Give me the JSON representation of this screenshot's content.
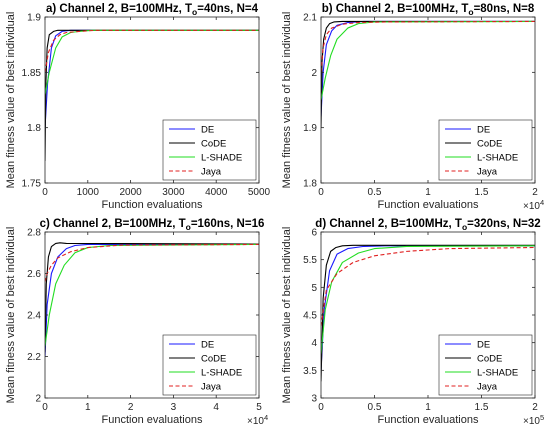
{
  "ylabel": "Mean fitness value of best individual",
  "legend_labels": [
    "DE",
    "CoDE",
    "L-SHADE",
    "Jaya"
  ],
  "colors": {
    "DE": "#1a1aff",
    "CoDE": "#000000",
    "L-SHADE": "#22dd22",
    "Jaya": "#e02020"
  },
  "chart_data": [
    {
      "type": "line",
      "title": {
        "prefix": "a) Channel 2, B=100MHz, T",
        "sub": "o",
        "suffix": "=40ns, N=4"
      },
      "xlabel": "Function evaluations",
      "xlim": [
        0,
        5000
      ],
      "ylim": [
        1.75,
        1.9
      ],
      "xticks": [
        0,
        1000,
        2000,
        3000,
        4000,
        5000
      ],
      "xtick_labels": [
        "0",
        "1000",
        "2000",
        "3000",
        "4000",
        "5000"
      ],
      "yticks": [
        1.75,
        1.8,
        1.85,
        1.9
      ],
      "ytick_labels": [
        "1.75",
        "1.8",
        "1.85",
        "1.9"
      ],
      "x_multiplier": "",
      "series": [
        {
          "name": "DE",
          "x": [
            0,
            60,
            150,
            250,
            400,
            600,
            900,
            5000
          ],
          "y": [
            1.8,
            1.84,
            1.872,
            1.883,
            1.887,
            1.888,
            1.888,
            1.888
          ]
        },
        {
          "name": "CoDE",
          "x": [
            0,
            20,
            50,
            100,
            200,
            300,
            500,
            5000
          ],
          "y": [
            1.77,
            1.84,
            1.872,
            1.884,
            1.887,
            1.888,
            1.888,
            1.888
          ]
        },
        {
          "name": "L-SHADE",
          "x": [
            0,
            100,
            250,
            400,
            600,
            800,
            1100,
            5000
          ],
          "y": [
            1.83,
            1.85,
            1.872,
            1.882,
            1.886,
            1.887,
            1.888,
            1.888
          ]
        },
        {
          "name": "Jaya",
          "x": [
            0,
            80,
            200,
            350,
            500,
            800,
            1200,
            5000
          ],
          "y": [
            1.85,
            1.868,
            1.879,
            1.884,
            1.886,
            1.887,
            1.888,
            1.888
          ]
        }
      ]
    },
    {
      "type": "line",
      "title": {
        "prefix": "b) Channel 2, B=100MHz, T",
        "sub": "o",
        "suffix": "=80ns, N=8"
      },
      "xlabel": "Function evaluations",
      "xlim": [
        0,
        20000
      ],
      "ylim": [
        1.8,
        2.1
      ],
      "xticks": [
        0,
        5000,
        10000,
        15000,
        20000
      ],
      "xtick_labels": [
        "0",
        "0.5",
        "1",
        "1.5",
        "2"
      ],
      "yticks": [
        1.8,
        1.9,
        2.0,
        2.1
      ],
      "ytick_labels": [
        "1.8",
        "1.9",
        "2",
        "2.1"
      ],
      "x_multiplier": "×10^4",
      "series": [
        {
          "name": "DE",
          "x": [
            0,
            200,
            500,
            1000,
            1500,
            2500,
            4000,
            20000
          ],
          "y": [
            1.92,
            2.0,
            2.05,
            2.075,
            2.085,
            2.09,
            2.092,
            2.092
          ]
        },
        {
          "name": "CoDE",
          "x": [
            0,
            100,
            250,
            500,
            800,
            1200,
            2000,
            20000
          ],
          "y": [
            1.9,
            2.02,
            2.06,
            2.08,
            2.088,
            2.091,
            2.092,
            2.092
          ]
        },
        {
          "name": "L-SHADE",
          "x": [
            0,
            400,
            900,
            1500,
            2500,
            3500,
            5000,
            20000
          ],
          "y": [
            1.95,
            1.99,
            2.03,
            2.06,
            2.08,
            2.088,
            2.091,
            2.092
          ]
        },
        {
          "name": "Jaya",
          "x": [
            0,
            200,
            500,
            1000,
            2000,
            3500,
            6000,
            20000
          ],
          "y": [
            2.0,
            2.045,
            2.068,
            2.08,
            2.087,
            2.09,
            2.091,
            2.092
          ]
        }
      ]
    },
    {
      "type": "line",
      "title": {
        "prefix": "c) Channel 2, B=100MHz, T",
        "sub": "o",
        "suffix": "=160ns, N=16"
      },
      "xlabel": "Function evaluations",
      "xlim": [
        0,
        50000
      ],
      "ylim": [
        2.0,
        2.8
      ],
      "xticks": [
        0,
        10000,
        20000,
        30000,
        40000,
        50000
      ],
      "xtick_labels": [
        "0",
        "1",
        "2",
        "3",
        "4",
        "5"
      ],
      "yticks": [
        2.0,
        2.2,
        2.4,
        2.6,
        2.8
      ],
      "ytick_labels": [
        "2",
        "2.2",
        "2.4",
        "2.6",
        "2.8"
      ],
      "x_multiplier": "×10^4",
      "series": [
        {
          "name": "DE",
          "x": [
            0,
            500,
            1500,
            3000,
            5000,
            7000,
            10000,
            50000
          ],
          "y": [
            2.2,
            2.45,
            2.6,
            2.68,
            2.72,
            2.735,
            2.74,
            2.74
          ]
        },
        {
          "name": "CoDE",
          "x": [
            0,
            300,
            800,
            1500,
            2500,
            3500,
            5000,
            50000
          ],
          "y": [
            2.22,
            2.55,
            2.68,
            2.73,
            2.745,
            2.748,
            2.745,
            2.742
          ]
        },
        {
          "name": "L-SHADE",
          "x": [
            0,
            1000,
            2500,
            4500,
            7000,
            10000,
            15000,
            50000
          ],
          "y": [
            2.25,
            2.4,
            2.55,
            2.64,
            2.7,
            2.725,
            2.735,
            2.74
          ]
        },
        {
          "name": "Jaya",
          "x": [
            0,
            500,
            1500,
            3000,
            6000,
            10000,
            18000,
            50000
          ],
          "y": [
            2.56,
            2.6,
            2.64,
            2.675,
            2.705,
            2.725,
            2.737,
            2.74
          ]
        }
      ]
    },
    {
      "type": "line",
      "title": {
        "prefix": "d) Channel 2, B=100MHz, T",
        "sub": "o",
        "suffix": "=320ns, N=32"
      },
      "xlabel": "Function evaluations",
      "xlim": [
        0,
        200000
      ],
      "ylim": [
        3,
        6
      ],
      "xticks": [
        0,
        50000,
        100000,
        150000,
        200000
      ],
      "xtick_labels": [
        "0",
        "0.5",
        "1",
        "1.5",
        "2"
      ],
      "yticks": [
        3,
        3.5,
        4,
        4.5,
        5,
        5.5,
        6
      ],
      "ytick_labels": [
        "3",
        "3.5",
        "4",
        "4.5",
        "5",
        "5.5",
        "6"
      ],
      "x_multiplier": "×10^5",
      "series": [
        {
          "name": "DE",
          "x": [
            0,
            3000,
            8000,
            15000,
            25000,
            40000,
            60000,
            200000
          ],
          "y": [
            3.5,
            4.6,
            5.3,
            5.6,
            5.7,
            5.74,
            5.75,
            5.75
          ]
        },
        {
          "name": "CoDE",
          "x": [
            0,
            2000,
            5000,
            9000,
            14000,
            20000,
            30000,
            200000
          ],
          "y": [
            3.3,
            4.8,
            5.4,
            5.65,
            5.72,
            5.75,
            5.76,
            5.76
          ]
        },
        {
          "name": "L-SHADE",
          "x": [
            0,
            4000,
            10000,
            20000,
            35000,
            50000,
            80000,
            200000
          ],
          "y": [
            3.8,
            4.6,
            5.1,
            5.45,
            5.62,
            5.7,
            5.74,
            5.75
          ]
        },
        {
          "name": "Jaya",
          "x": [
            0,
            5000,
            15000,
            30000,
            50000,
            80000,
            120000,
            200000
          ],
          "y": [
            4.3,
            4.95,
            5.25,
            5.45,
            5.57,
            5.65,
            5.7,
            5.72
          ]
        }
      ]
    }
  ]
}
